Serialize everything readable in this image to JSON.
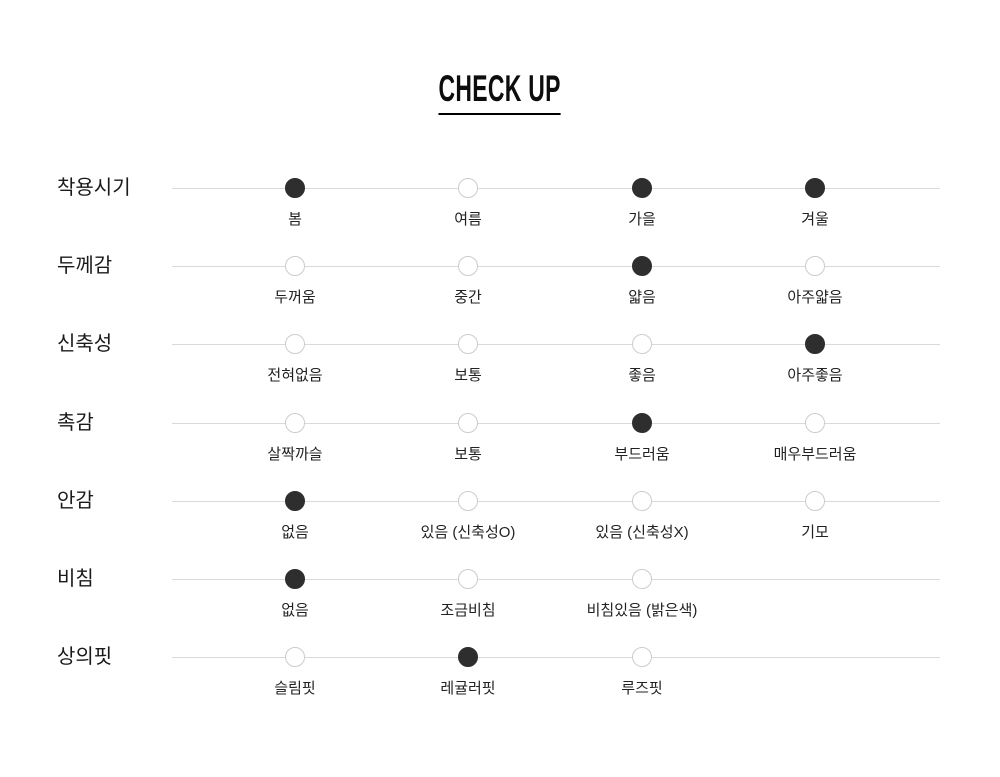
{
  "title": "CHECK UP",
  "colors": {
    "selected_dot": "#2e2e2e",
    "empty_dot_border": "#cccccc",
    "line": "#d9d9d9",
    "label_text": "#1a1a1a",
    "option_text": "#222222"
  },
  "rows": [
    {
      "label": "착용시기",
      "options": [
        {
          "label": "봄",
          "selected": true
        },
        {
          "label": "여름",
          "selected": false
        },
        {
          "label": "가을",
          "selected": true
        },
        {
          "label": "겨울",
          "selected": true
        }
      ]
    },
    {
      "label": "두께감",
      "options": [
        {
          "label": "두꺼움",
          "selected": false
        },
        {
          "label": "중간",
          "selected": false
        },
        {
          "label": "얇음",
          "selected": true
        },
        {
          "label": "아주얇음",
          "selected": false
        }
      ]
    },
    {
      "label": "신축성",
      "options": [
        {
          "label": "전혀없음",
          "selected": false
        },
        {
          "label": "보통",
          "selected": false
        },
        {
          "label": "좋음",
          "selected": false
        },
        {
          "label": "아주좋음",
          "selected": true
        }
      ]
    },
    {
      "label": "촉감",
      "options": [
        {
          "label": "살짝까슬",
          "selected": false
        },
        {
          "label": "보통",
          "selected": false
        },
        {
          "label": "부드러움",
          "selected": true
        },
        {
          "label": "매우부드러움",
          "selected": false
        }
      ]
    },
    {
      "label": "안감",
      "options": [
        {
          "label": "없음",
          "selected": true
        },
        {
          "label": "있음 (신축성O)",
          "selected": false
        },
        {
          "label": "있음 (신축성X)",
          "selected": false
        },
        {
          "label": "기모",
          "selected": false
        }
      ]
    },
    {
      "label": "비침",
      "options": [
        {
          "label": "없음",
          "selected": true
        },
        {
          "label": "조금비침",
          "selected": false
        },
        {
          "label": "비침있음 (밝은색)",
          "selected": false
        }
      ]
    },
    {
      "label": "상의핏",
      "options": [
        {
          "label": "슬림핏",
          "selected": false
        },
        {
          "label": "레귤러핏",
          "selected": true
        },
        {
          "label": "루즈핏",
          "selected": false
        }
      ]
    }
  ],
  "chart_data": {
    "type": "table",
    "title": "CHECK UP",
    "rows": [
      {
        "category": "착용시기",
        "options": [
          "봄",
          "여름",
          "가을",
          "겨울"
        ],
        "selected": [
          "봄",
          "가을",
          "겨울"
        ]
      },
      {
        "category": "두께감",
        "options": [
          "두꺼움",
          "중간",
          "얇음",
          "아주얇음"
        ],
        "selected": [
          "얇음"
        ]
      },
      {
        "category": "신축성",
        "options": [
          "전혀없음",
          "보통",
          "좋음",
          "아주좋음"
        ],
        "selected": [
          "아주좋음"
        ]
      },
      {
        "category": "촉감",
        "options": [
          "살짝까슬",
          "보통",
          "부드러움",
          "매우부드러움"
        ],
        "selected": [
          "부드러움"
        ]
      },
      {
        "category": "안감",
        "options": [
          "없음",
          "있음 (신축성O)",
          "있음 (신축성X)",
          "기모"
        ],
        "selected": [
          "없음"
        ]
      },
      {
        "category": "비침",
        "options": [
          "없음",
          "조금비침",
          "비침있음 (밝은색)"
        ],
        "selected": [
          "없음"
        ]
      },
      {
        "category": "상의핏",
        "options": [
          "슬림핏",
          "레귤러핏",
          "루즈핏"
        ],
        "selected": [
          "레귤러핏"
        ]
      }
    ]
  }
}
